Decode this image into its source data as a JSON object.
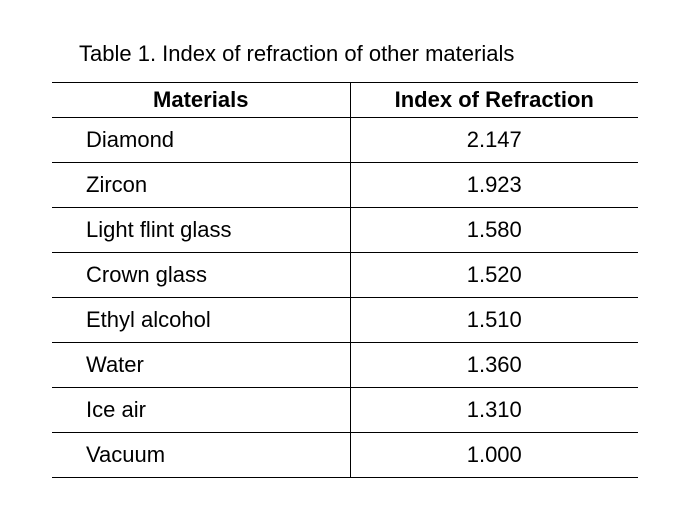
{
  "caption": "Table 1. Index of refraction of other materials",
  "table": {
    "headers": [
      "Materials",
      "Index of Refraction"
    ],
    "rows": [
      {
        "material": "Diamond",
        "index": "2.147"
      },
      {
        "material": "Zircon",
        "index": "1.923"
      },
      {
        "material": "Light flint glass",
        "index": "1.580"
      },
      {
        "material": "Crown glass",
        "index": "1.520"
      },
      {
        "material": "Ethyl alcohol",
        "index": "1.510"
      },
      {
        "material": "Water",
        "index": "1.360"
      },
      {
        "material": "Ice air",
        "index": "1.310"
      },
      {
        "material": "Vacuum",
        "index": "1.000"
      }
    ]
  }
}
